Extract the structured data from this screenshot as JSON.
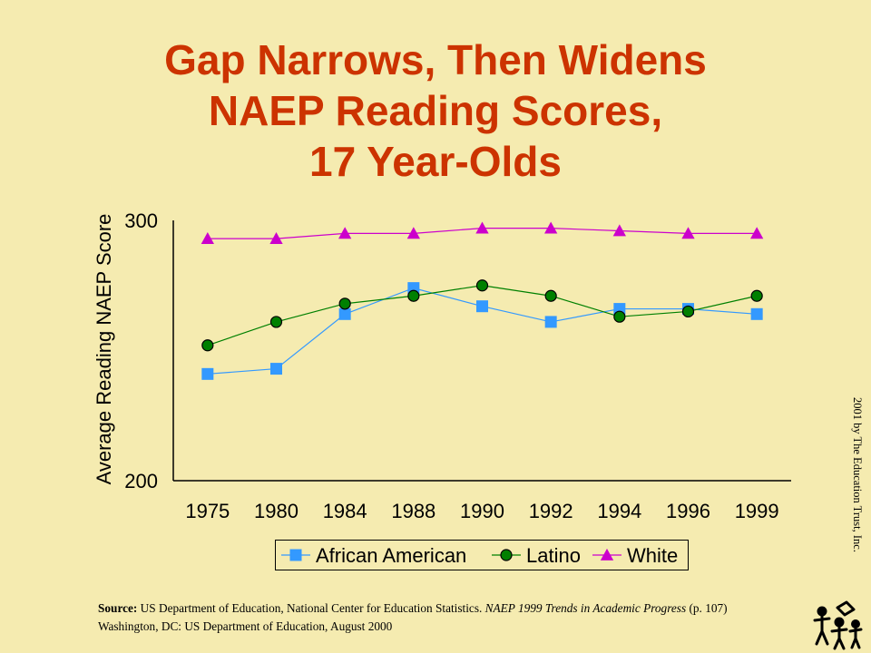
{
  "title_lines": [
    "Gap Narrows, Then Widens",
    "NAEP Reading Scores,",
    "17 Year-Olds"
  ],
  "chart_data": {
    "type": "line",
    "ylabel": "Average Reading NAEP Score",
    "ylim": [
      200,
      300
    ],
    "yticks": [
      "200",
      "300"
    ],
    "categories": [
      "1975",
      "1980",
      "1984",
      "1988",
      "1990",
      "1992",
      "1994",
      "1996",
      "1999"
    ],
    "series": [
      {
        "name": "African American",
        "color": "#3399FF",
        "marker": "square",
        "values": [
          241,
          243,
          264,
          274,
          267,
          261,
          266,
          266,
          264
        ]
      },
      {
        "name": "Latino",
        "color": "#008000",
        "marker": "circle",
        "values": [
          252,
          261,
          268,
          271,
          275,
          271,
          263,
          265,
          271
        ]
      },
      {
        "name": "White",
        "color": "#CC00CC",
        "marker": "triangle",
        "values": [
          293,
          293,
          295,
          295,
          297,
          297,
          296,
          295,
          295
        ]
      }
    ],
    "legend_position": "bottom",
    "grid": false
  },
  "source": {
    "label": "Source:",
    "text1": " US Department of Education, National Center for Education Statistics. ",
    "title": "NAEP 1999 Trends in Academic Progress",
    "text2": " (p. 107)",
    "line2": "Washington, DC: US  Department of Education, August 2000"
  },
  "copyright": "2001 by The Education Trust, Inc."
}
